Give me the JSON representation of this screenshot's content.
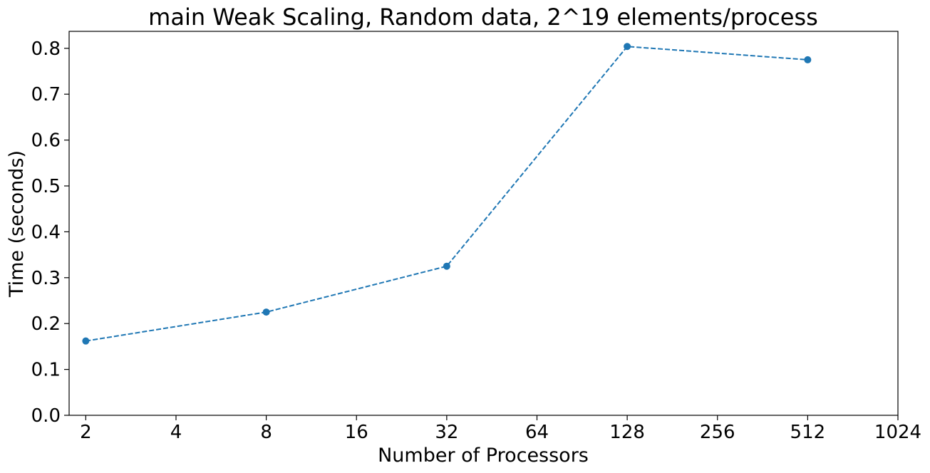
{
  "chart_data": {
    "type": "line",
    "title": "main Weak Scaling, Random data, 2^19 elements/process",
    "xlabel": "Number of Processors",
    "ylabel": "Time (seconds)",
    "x_scale": "log2",
    "x_ticks": [
      2,
      4,
      8,
      16,
      32,
      64,
      128,
      256,
      512,
      1024
    ],
    "y_ticks": [
      0.0,
      0.1,
      0.2,
      0.3,
      0.4,
      0.5,
      0.6,
      0.7,
      0.8
    ],
    "y_tick_labels": [
      "0.0",
      "0.1",
      "0.2",
      "0.3",
      "0.4",
      "0.5",
      "0.6",
      "0.7",
      "0.8"
    ],
    "xlim": [
      1.76,
      1024
    ],
    "ylim": [
      0.0,
      0.837
    ],
    "grid": false,
    "series": [
      {
        "x": [
          2,
          8,
          32,
          128,
          512
        ],
        "y": [
          0.162,
          0.225,
          0.325,
          0.804,
          0.775
        ],
        "color": "#1f77b4",
        "line_style": "dashed",
        "marker": "circle"
      }
    ]
  }
}
